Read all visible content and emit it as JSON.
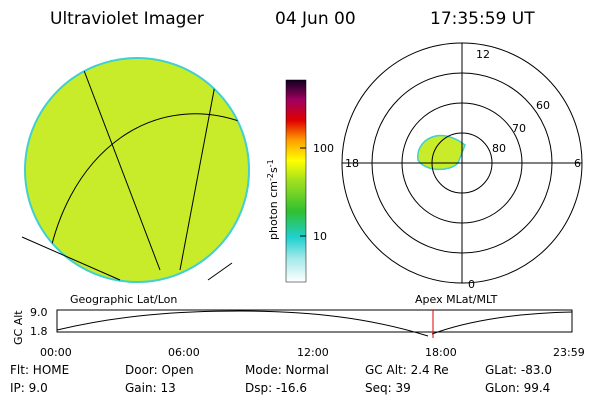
{
  "header": {
    "title": "Ultraviolet Imager",
    "date": "04 Jun 00",
    "time": "17:35:59 UT"
  },
  "colorbar": {
    "label": [
      "photon cm",
      "-2",
      "s",
      "-1"
    ],
    "ticks": [
      "100",
      "10"
    ]
  },
  "polar": {
    "mlt_labels": [
      "12",
      "6",
      "0",
      "18"
    ],
    "lat_labels": [
      "60",
      "70",
      "80"
    ]
  },
  "timeline": {
    "axis_label": "GC Alt",
    "y_labels": [
      "9.0",
      "1.8"
    ],
    "left_caption": "Geographic Lat/Lon",
    "right_caption": "Apex MLat/MLT",
    "times": [
      "00:00",
      "06:00",
      "12:00",
      "18:00",
      "23:59"
    ]
  },
  "footer": [
    [
      "Flt: HOME",
      "IP: 9.0"
    ],
    [
      "Door: Open",
      "Gain: 13"
    ],
    [
      "Mode: Normal",
      "Dsp: -16.6"
    ],
    [
      "GC Alt: 2.4 Re",
      "Seq: 39"
    ],
    [
      "GLat: -83.0",
      "GLon: 99.4"
    ]
  ]
}
